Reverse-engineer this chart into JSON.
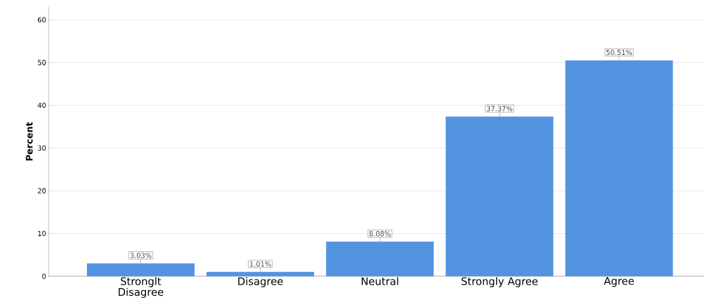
{
  "chart_data": {
    "type": "bar",
    "ylabel": "Percent",
    "categories": [
      "Stronglt Disagree",
      "Disagree",
      "Neutral",
      "Strongly Agree",
      "Agree"
    ],
    "values": [
      3.03,
      1.01,
      8.08,
      37.37,
      50.51
    ],
    "value_labels": [
      "3.03%",
      "1.01%",
      "8.08%",
      "37.37%",
      "50.51%"
    ],
    "color": "#5294e2",
    "ylim": [
      0,
      63
    ],
    "yticks": [
      0,
      10,
      20,
      30,
      40,
      50,
      60
    ],
    "grid": "y"
  }
}
